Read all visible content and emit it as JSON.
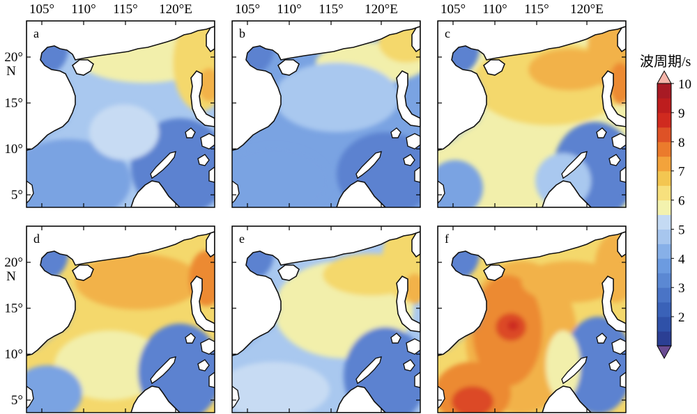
{
  "figure": {
    "lon_ticks": [
      "105°",
      "110°",
      "115°",
      "120°E"
    ],
    "lat_ticks_top": [
      "20°",
      "15°",
      "10°",
      "5°"
    ],
    "lat_ticks_bottom": [
      "20°",
      "15°",
      "10°",
      "5°"
    ],
    "lat_unit": "N"
  },
  "panels": [
    {
      "letter": "a",
      "theme": "a"
    },
    {
      "letter": "b",
      "theme": "b"
    },
    {
      "letter": "c",
      "theme": "c"
    },
    {
      "letter": "d",
      "theme": "d"
    },
    {
      "letter": "e",
      "theme": "e"
    },
    {
      "letter": "f",
      "theme": "f"
    }
  ],
  "colorbar": {
    "title": "波周期/s",
    "labels": [
      "10",
      "9",
      "8",
      "7",
      "6",
      "5",
      "4",
      "3",
      "2"
    ],
    "colors": [
      "#2b3f94",
      "#2f51a8",
      "#3a62b8",
      "#4a74c6",
      "#5b88d3",
      "#6c9be0",
      "#87b0e8",
      "#a7c6ee",
      "#c4daf3",
      "#f3f2ae",
      "#f7e07d",
      "#f3c651",
      "#f3a33b",
      "#eb7b2c",
      "#de5226",
      "#d02a1f",
      "#bd1d1e",
      "#a81a24"
    ],
    "under_color": "#6a4c93",
    "over_color": "#f4b4a9"
  },
  "map_data": {
    "region": "South China Sea",
    "lon_range": [
      104,
      124
    ],
    "lat_range": [
      4,
      24
    ],
    "variable": "波周期/s"
  }
}
